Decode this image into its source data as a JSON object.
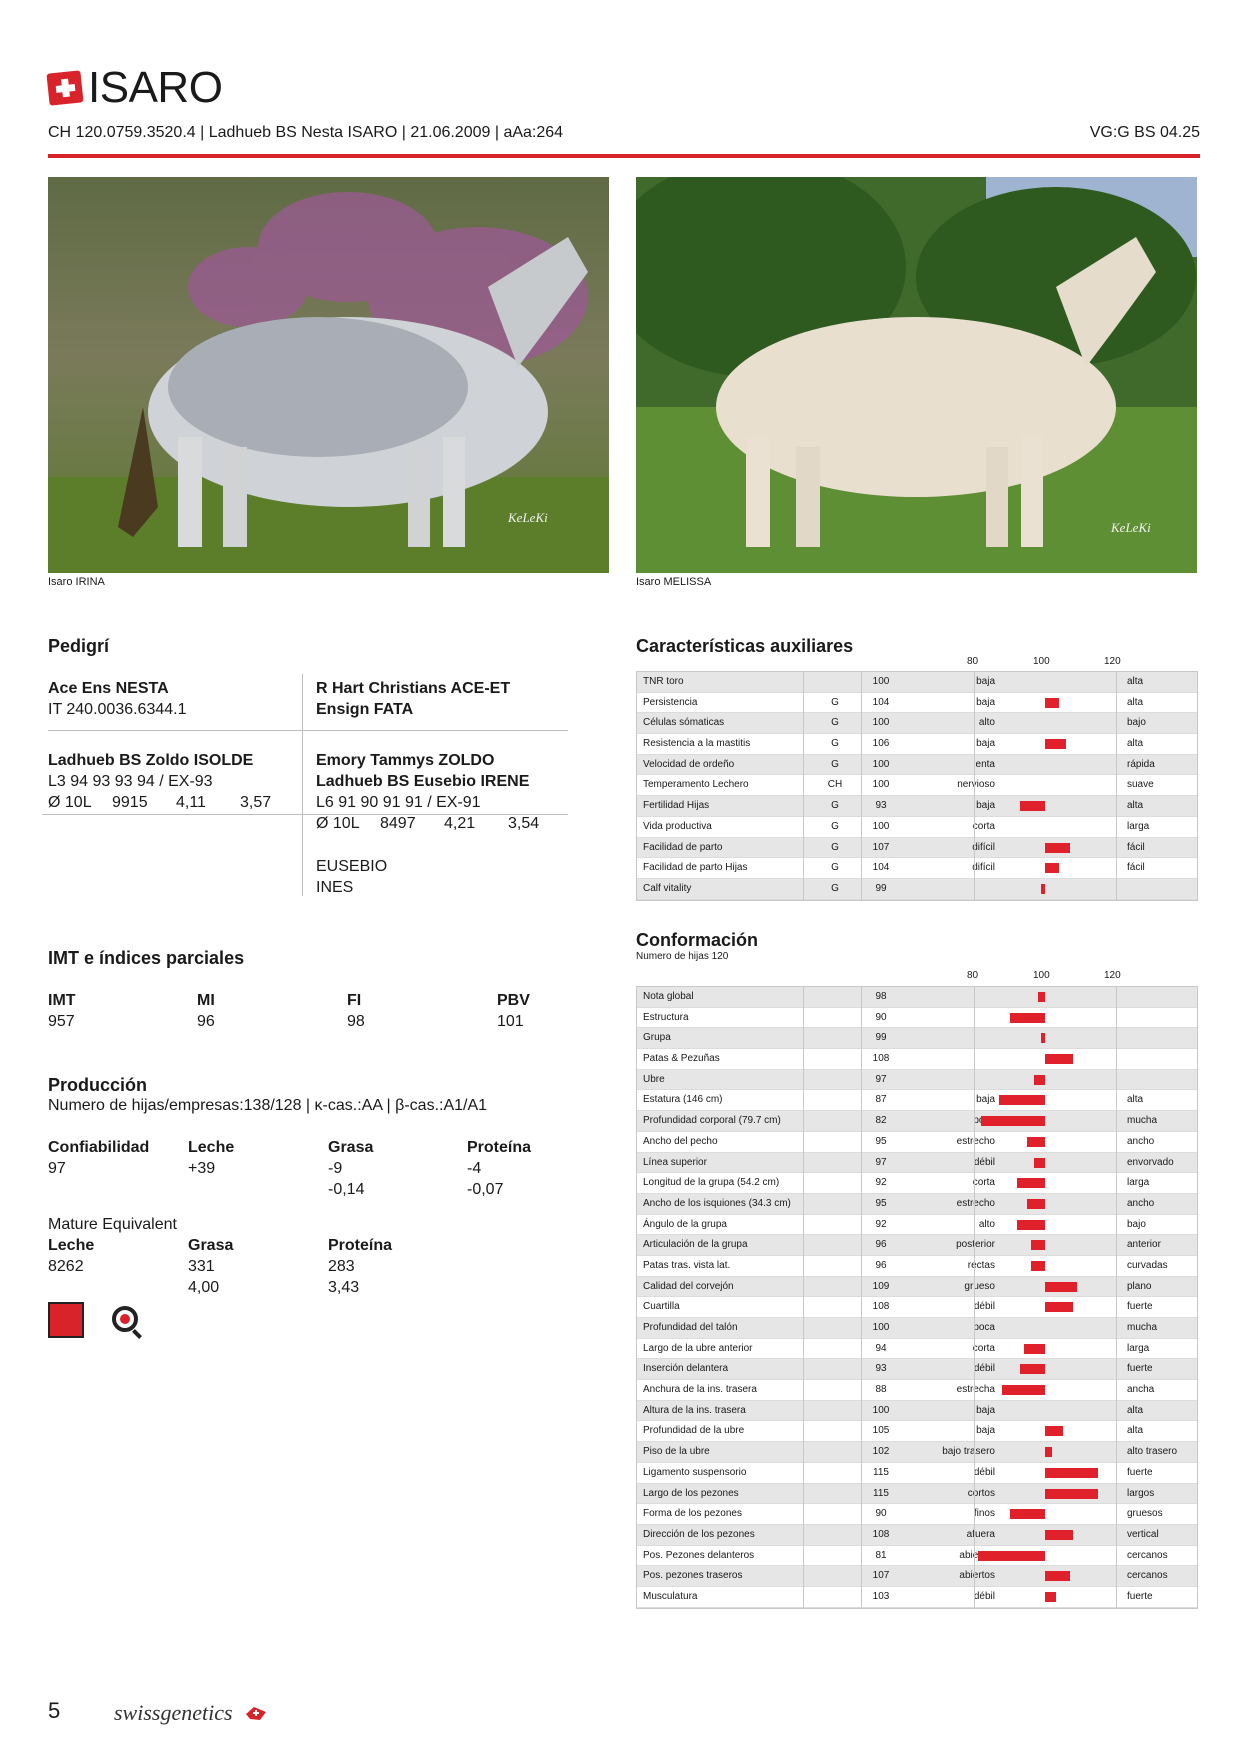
{
  "header": {
    "name": "ISARO",
    "id_line": "CH 120.0759.3520.4 | Ladhueb BS Nesta ISARO | 21.06.2009 | aAa:264",
    "vg": "VG:G BS 04.25"
  },
  "photos": {
    "left_caption": "Isaro IRINA",
    "right_caption": "Isaro MELISSA",
    "watermark": "KeLeKi"
  },
  "pedigree": {
    "title": "Pedigrí",
    "sire": {
      "name": "Ace Ens NESTA",
      "id": "IT 240.0036.6344.1"
    },
    "sire_sire": "R Hart Christians ACE-ET",
    "sire_dam": "Ensign FATA",
    "dam": {
      "name": "Ladhueb BS Zoldo ISOLDE",
      "class": "L3 94 93 93 94 / EX-93",
      "lact": "Ø 10L",
      "milk": "9915",
      "fat": "4,11",
      "prot": "3,57"
    },
    "dam_sire": "Emory Tammys ZOLDO",
    "dam_dam": {
      "name": "Ladhueb BS Eusebio IRENE",
      "class": "L6 91 90 91 91 / EX-91",
      "lact": "Ø 10L",
      "milk": "8497",
      "fat": "4,21",
      "prot": "3,54"
    },
    "ggs": "EUSEBIO",
    "ggd": "INES"
  },
  "imt": {
    "title": "IMT e índices parciales",
    "items": [
      {
        "label": "IMT",
        "value": "957"
      },
      {
        "label": "MI",
        "value": "96"
      },
      {
        "label": "FI",
        "value": "98"
      },
      {
        "label": "PBV",
        "value": "101"
      }
    ]
  },
  "production": {
    "title": "Producción",
    "subtitle": "Numero de hijas/empresas:138/128 | κ-cas.:AA | β-cas.:A1/A1",
    "headers": [
      "Confiabilidad",
      "Leche",
      "Grasa",
      "Proteína"
    ],
    "row1": [
      "97",
      "+39",
      "-9",
      "-4"
    ],
    "row2": [
      "",
      "",
      "-0,14",
      "-0,07"
    ],
    "me_title": "Mature Equivalent",
    "me_headers": [
      "Leche",
      "Grasa",
      "Proteína"
    ],
    "me_row1": [
      "8262",
      "331",
      "283"
    ],
    "me_row2": [
      "",
      "4,00",
      "3,43"
    ]
  },
  "aux": {
    "title": "Características auxiliares",
    "scale": [
      "80",
      "100",
      "120"
    ],
    "rows": [
      {
        "name": "TNR toro",
        "base": "",
        "value": 100,
        "low": "baja",
        "high": "alta"
      },
      {
        "name": "Persistencia",
        "base": "G",
        "value": 104,
        "low": "baja",
        "high": "alta"
      },
      {
        "name": "Células sómaticas",
        "base": "G",
        "value": 100,
        "low": "alto",
        "high": "bajo"
      },
      {
        "name": "Resistencia a la mastitis",
        "base": "G",
        "value": 106,
        "low": "baja",
        "high": "alta"
      },
      {
        "name": "Velocidad de ordeño",
        "base": "G",
        "value": 100,
        "low": "lenta",
        "high": "rápida"
      },
      {
        "name": "Temperamento Lechero",
        "base": "CH",
        "value": 100,
        "low": "nervioso",
        "high": "suave"
      },
      {
        "name": "Fertilidad Hijas",
        "base": "G",
        "value": 93,
        "low": "baja",
        "high": "alta"
      },
      {
        "name": "Vida productiva",
        "base": "G",
        "value": 100,
        "low": "corta",
        "high": "larga"
      },
      {
        "name": "Facilidad de parto",
        "base": "G",
        "value": 107,
        "low": "difícil",
        "high": "fácil"
      },
      {
        "name": "Facilidad de parto Hijas",
        "base": "G",
        "value": 104,
        "low": "difícil",
        "high": "fácil"
      },
      {
        "name": "Calf vitality",
        "base": "G",
        "value": 99,
        "low": "",
        "high": ""
      }
    ]
  },
  "conf": {
    "title": "Conformación",
    "subtitle": "Numero de hijas 120",
    "scale": [
      "80",
      "100",
      "120"
    ],
    "rows": [
      {
        "name": "Nota global",
        "value": 98,
        "low": "",
        "high": ""
      },
      {
        "name": "Estructura",
        "value": 90,
        "low": "",
        "high": ""
      },
      {
        "name": "Grupa",
        "value": 99,
        "low": "",
        "high": ""
      },
      {
        "name": "Patas & Pezuñas",
        "value": 108,
        "low": "",
        "high": ""
      },
      {
        "name": "Ubre",
        "value": 97,
        "low": "",
        "high": ""
      },
      {
        "name": "Estatura (146 cm)",
        "value": 87,
        "low": "baja",
        "high": "alta"
      },
      {
        "name": "Profundidad corporal (79.7 cm)",
        "value": 82,
        "low": "poca",
        "high": "mucha"
      },
      {
        "name": "Ancho del pecho",
        "value": 95,
        "low": "estrecho",
        "high": "ancho"
      },
      {
        "name": "Línea superior",
        "value": 97,
        "low": "débil",
        "high": "envorvado"
      },
      {
        "name": "Longitud de la grupa (54.2 cm)",
        "value": 92,
        "low": "corta",
        "high": "larga"
      },
      {
        "name": "Ancho de los isquiones (34.3 cm)",
        "value": 95,
        "low": "estrecho",
        "high": "ancho"
      },
      {
        "name": "Ángulo de la grupa",
        "value": 92,
        "low": "alto",
        "high": "bajo"
      },
      {
        "name": "Articulación de la grupa",
        "value": 96,
        "low": "posterior",
        "high": "anterior"
      },
      {
        "name": "Patas tras. vista lat.",
        "value": 96,
        "low": "rectas",
        "high": "curvadas"
      },
      {
        "name": "Calidad del corvejón",
        "value": 109,
        "low": "grueso",
        "high": "plano"
      },
      {
        "name": "Cuartilla",
        "value": 108,
        "low": "débil",
        "high": "fuerte"
      },
      {
        "name": "Profundidad del talón",
        "value": 100,
        "low": "poca",
        "high": "mucha"
      },
      {
        "name": "Largo de la ubre anterior",
        "value": 94,
        "low": "corta",
        "high": "larga"
      },
      {
        "name": "Inserción delantera",
        "value": 93,
        "low": "débil",
        "high": "fuerte"
      },
      {
        "name": "Anchura de la ins. trasera",
        "value": 88,
        "low": "estrecha",
        "high": "ancha"
      },
      {
        "name": "Altura de la ins. trasera",
        "value": 100,
        "low": "baja",
        "high": "alta"
      },
      {
        "name": "Profundidad de la ubre",
        "value": 105,
        "low": "baja",
        "high": "alta"
      },
      {
        "name": "Piso de la ubre",
        "value": 102,
        "low": "bajo trasero",
        "high": "alto trasero"
      },
      {
        "name": "Ligamento suspensorio",
        "value": 115,
        "low": "débil",
        "high": "fuerte"
      },
      {
        "name": "Largo de los pezones",
        "value": 115,
        "low": "cortos",
        "high": "largos"
      },
      {
        "name": "Forma de los pezones",
        "value": 90,
        "low": "finos",
        "high": "gruesos"
      },
      {
        "name": "Dirección de los pezones",
        "value": 108,
        "low": "afuera",
        "high": "vertical"
      },
      {
        "name": "Pos. Pezones delanteros",
        "value": 81,
        "low": "abiertos",
        "high": "cercanos"
      },
      {
        "name": "Pos. pezones traseros",
        "value": 107,
        "low": "abiertos",
        "high": "cercanos"
      },
      {
        "name": "Musculatura",
        "value": 103,
        "low": "débil",
        "high": "fuerte"
      }
    ]
  },
  "footer": {
    "page": "5",
    "brand": "swissgenetics"
  },
  "colors": {
    "accent": "#d8232a",
    "bar": "#e0202a"
  }
}
